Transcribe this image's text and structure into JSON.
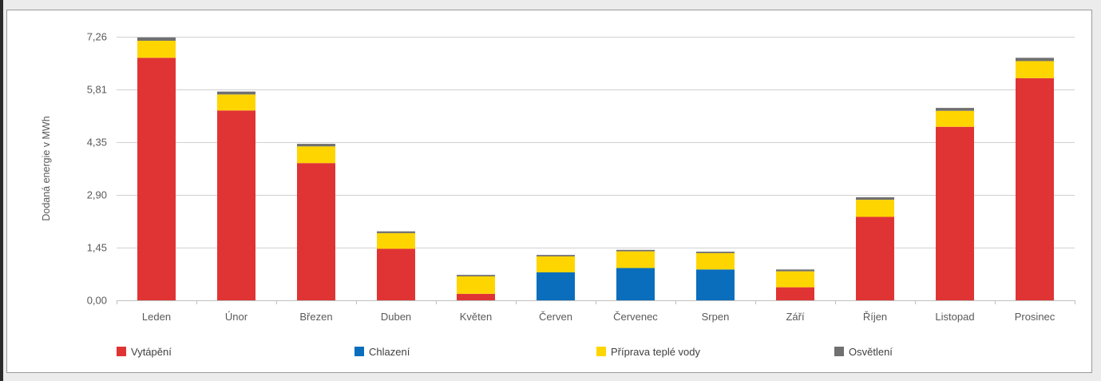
{
  "chart_data": {
    "type": "bar",
    "stacked": true,
    "ylabel": "Dodaná energie v MWh",
    "ylim": [
      0,
      7.26
    ],
    "yticks": [
      "0,00",
      "1,45",
      "2,90",
      "4,35",
      "5,81",
      "7,26"
    ],
    "ytick_values": [
      0,
      1.45,
      2.9,
      4.35,
      5.81,
      7.26
    ],
    "grid": true,
    "legend_position": "bottom",
    "categories": [
      "Leden",
      "Únor",
      "Březen",
      "Duben",
      "Květen",
      "Červen",
      "Červenec",
      "Srpen",
      "Září",
      "Říjen",
      "Listopad",
      "Prosinec"
    ],
    "series": [
      {
        "name": "Vytápění",
        "color": "#e03434",
        "values": [
          6.68,
          5.23,
          3.78,
          1.42,
          0.18,
          0.0,
          0.0,
          0.0,
          0.36,
          2.3,
          4.78,
          6.12
        ]
      },
      {
        "name": "Chlazení",
        "color": "#0a6ebd",
        "values": [
          0.0,
          0.0,
          0.0,
          0.0,
          0.0,
          0.77,
          0.89,
          0.85,
          0.0,
          0.0,
          0.0,
          0.0
        ]
      },
      {
        "name": "Příprava teplé vody",
        "color": "#ffd500",
        "values": [
          0.47,
          0.44,
          0.46,
          0.43,
          0.48,
          0.44,
          0.46,
          0.45,
          0.44,
          0.47,
          0.44,
          0.47
        ]
      },
      {
        "name": "Osvětlení",
        "color": "#707070",
        "values": [
          0.09,
          0.08,
          0.07,
          0.05,
          0.04,
          0.04,
          0.04,
          0.04,
          0.05,
          0.07,
          0.08,
          0.09
        ]
      }
    ]
  }
}
